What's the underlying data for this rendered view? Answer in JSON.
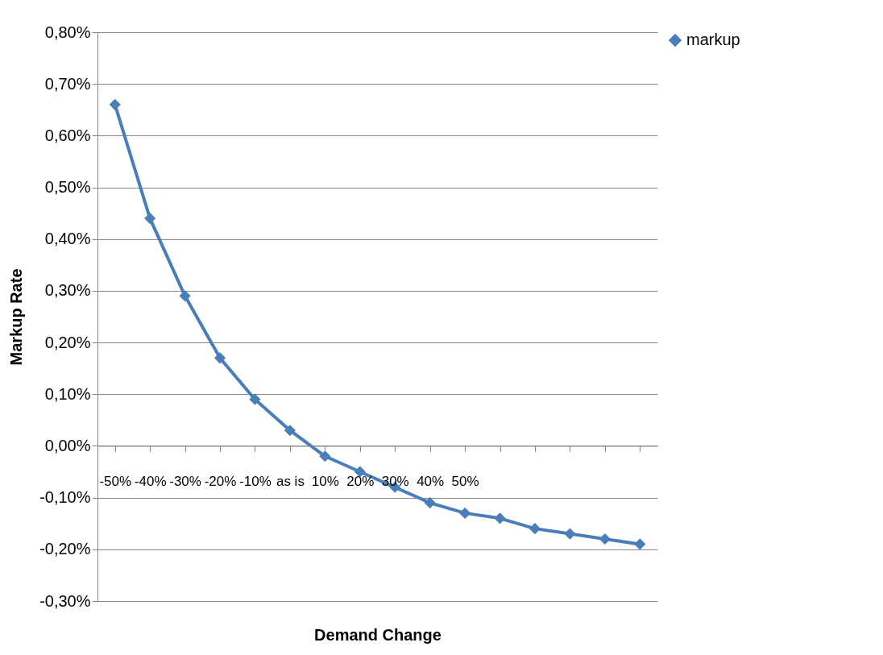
{
  "chart_data": {
    "type": "line",
    "xlabel": "Demand Change",
    "ylabel": "Markup Rate",
    "categories": [
      "-50%",
      "-40%",
      "-30%",
      "-20%",
      "-10%",
      "as is",
      "10%",
      "20%",
      "30%",
      "40%",
      "50%",
      null,
      null,
      null,
      null,
      null
    ],
    "series": [
      {
        "name": "markup",
        "color": "#4a7ebb",
        "values": [
          0.66,
          0.44,
          0.29,
          0.17,
          0.09,
          0.03,
          -0.02,
          -0.05,
          -0.08,
          -0.11,
          -0.13,
          -0.14,
          -0.16,
          -0.17,
          -0.18,
          -0.19
        ]
      }
    ],
    "ylim": [
      -0.3,
      0.8
    ],
    "yticks": [
      {
        "value": -0.3,
        "label": "-0,30%"
      },
      {
        "value": -0.2,
        "label": "-0,20%"
      },
      {
        "value": -0.1,
        "label": "-0,10%"
      },
      {
        "value": 0,
        "label": "0,00%"
      },
      {
        "value": 0.1,
        "label": "0,10%"
      },
      {
        "value": 0.2,
        "label": "0,20%"
      },
      {
        "value": 0.3,
        "label": "0,30%"
      },
      {
        "value": 0.4,
        "label": "0,40%"
      },
      {
        "value": 0.5,
        "label": "0,50%"
      },
      {
        "value": 0.6,
        "label": "0,60%"
      },
      {
        "value": 0.7,
        "label": "0,70%"
      },
      {
        "value": 0.8,
        "label": "0,80%"
      }
    ],
    "grid": "y",
    "legend": "right",
    "marker": "diamond"
  }
}
